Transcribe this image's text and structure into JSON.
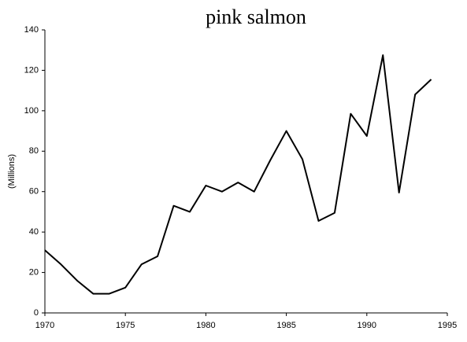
{
  "chart_data": {
    "type": "line",
    "title": "pink salmon",
    "y_label": "(Millions)",
    "x": [
      1970,
      1971,
      1972,
      1973,
      1974,
      1975,
      1976,
      1977,
      1978,
      1979,
      1980,
      1981,
      1982,
      1983,
      1984,
      1985,
      1986,
      1987,
      1988,
      1989,
      1990,
      1991,
      1992,
      1993,
      1994
    ],
    "series": [
      {
        "name": "pink salmon",
        "color": "#000000",
        "values": [
          31,
          24,
          16,
          9.5,
          9.5,
          12.5,
          24,
          28,
          53,
          50,
          63,
          60,
          64.5,
          60,
          75.5,
          90,
          76,
          45.5,
          49.5,
          98.5,
          87.5,
          127.5,
          59.5,
          108,
          115.5
        ]
      }
    ],
    "xlim": [
      1970,
      1995
    ],
    "xticks": [
      1970,
      1975,
      1980,
      1985,
      1990,
      1995
    ],
    "ylim": [
      0,
      140
    ],
    "yticks": [
      0,
      20,
      40,
      60,
      80,
      100,
      120,
      140
    ]
  }
}
